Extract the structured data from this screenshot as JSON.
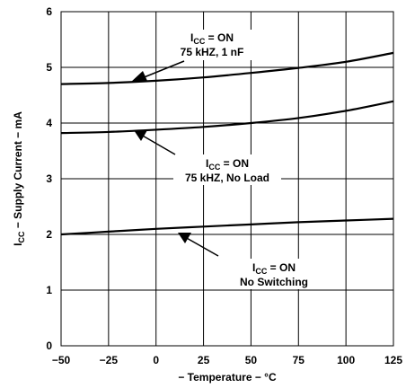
{
  "chart_data": {
    "type": "line",
    "title": "",
    "xlabel": "− Temperature − °C",
    "ylabel": "I",
    "ylabel_sub": "CC",
    "ylabel_rest": " − Supply Current − mA",
    "xlim": [
      -50,
      125
    ],
    "ylim": [
      0,
      6
    ],
    "x_ticks": [
      -50,
      -25,
      0,
      25,
      50,
      75,
      100,
      125
    ],
    "x_tick_labels": [
      "−50",
      "−25",
      "0",
      "25",
      "50",
      "75",
      "100",
      "125"
    ],
    "y_ticks": [
      0,
      1,
      2,
      3,
      4,
      5,
      6
    ],
    "y_tick_labels": [
      "0",
      "1",
      "2",
      "3",
      "4",
      "5",
      "6"
    ],
    "grid": true,
    "x": [
      -50,
      -25,
      0,
      25,
      50,
      75,
      100,
      125
    ],
    "series": [
      {
        "values": [
          4.7,
          4.72,
          4.76,
          4.82,
          4.9,
          4.99,
          5.1,
          5.26
        ]
      },
      {
        "values": [
          3.82,
          3.84,
          3.88,
          3.93,
          4.0,
          4.09,
          4.22,
          4.39
        ]
      },
      {
        "values": [
          2.0,
          2.05,
          2.1,
          2.14,
          2.18,
          2.22,
          2.25,
          2.28
        ]
      }
    ],
    "annotations": [
      {
        "line1_main": "I",
        "line1_sub": "CC",
        "line1_rest": " = ON",
        "line2": "75 kHZ, 1 nF"
      },
      {
        "line1_main": "I",
        "line1_sub": "CC",
        "line1_rest": " = ON",
        "line2": "75 kHZ, No Load"
      },
      {
        "line1_main": "I",
        "line1_sub": "CC",
        "line1_rest": " = ON",
        "line2": "No Switching"
      }
    ]
  }
}
